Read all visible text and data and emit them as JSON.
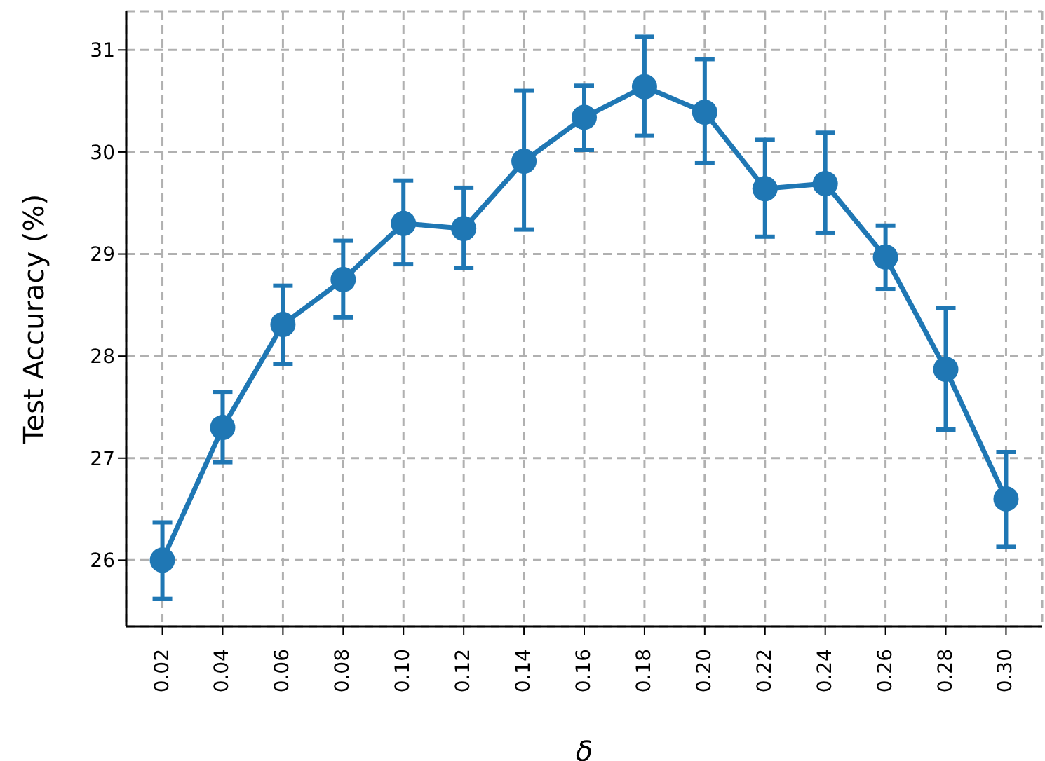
{
  "chart_data": {
    "type": "line",
    "xlabel": "δ",
    "ylabel": "Test Accuracy (%)",
    "categories": [
      "0.02",
      "0.04",
      "0.06",
      "0.08",
      "0.10",
      "0.12",
      "0.14",
      "0.16",
      "0.18",
      "0.20",
      "0.22",
      "0.24",
      "0.26",
      "0.28",
      "0.30"
    ],
    "series": [
      {
        "color": "#1f77b4",
        "values": [
          26.0,
          27.3,
          28.31,
          28.75,
          29.3,
          29.25,
          29.91,
          30.34,
          30.64,
          30.39,
          29.64,
          29.69,
          28.97,
          27.87,
          26.6
        ],
        "errors": [
          [
            25.62,
            26.37
          ],
          [
            26.96,
            27.65
          ],
          [
            27.92,
            28.69
          ],
          [
            28.38,
            29.13
          ],
          [
            28.9,
            29.72
          ],
          [
            28.86,
            29.65
          ],
          [
            29.24,
            30.6
          ],
          [
            30.02,
            30.65
          ],
          [
            30.16,
            31.13
          ],
          [
            29.89,
            30.91
          ],
          [
            29.17,
            30.12
          ],
          [
            29.21,
            30.19
          ],
          [
            28.66,
            29.28
          ],
          [
            27.28,
            28.47
          ],
          [
            26.13,
            27.06
          ]
        ]
      }
    ],
    "ylim": [
      25.35,
      31.38
    ],
    "yticks": [
      26,
      27,
      28,
      29,
      30,
      31
    ],
    "grid": true,
    "marker": "circle",
    "line_style": "solid"
  }
}
